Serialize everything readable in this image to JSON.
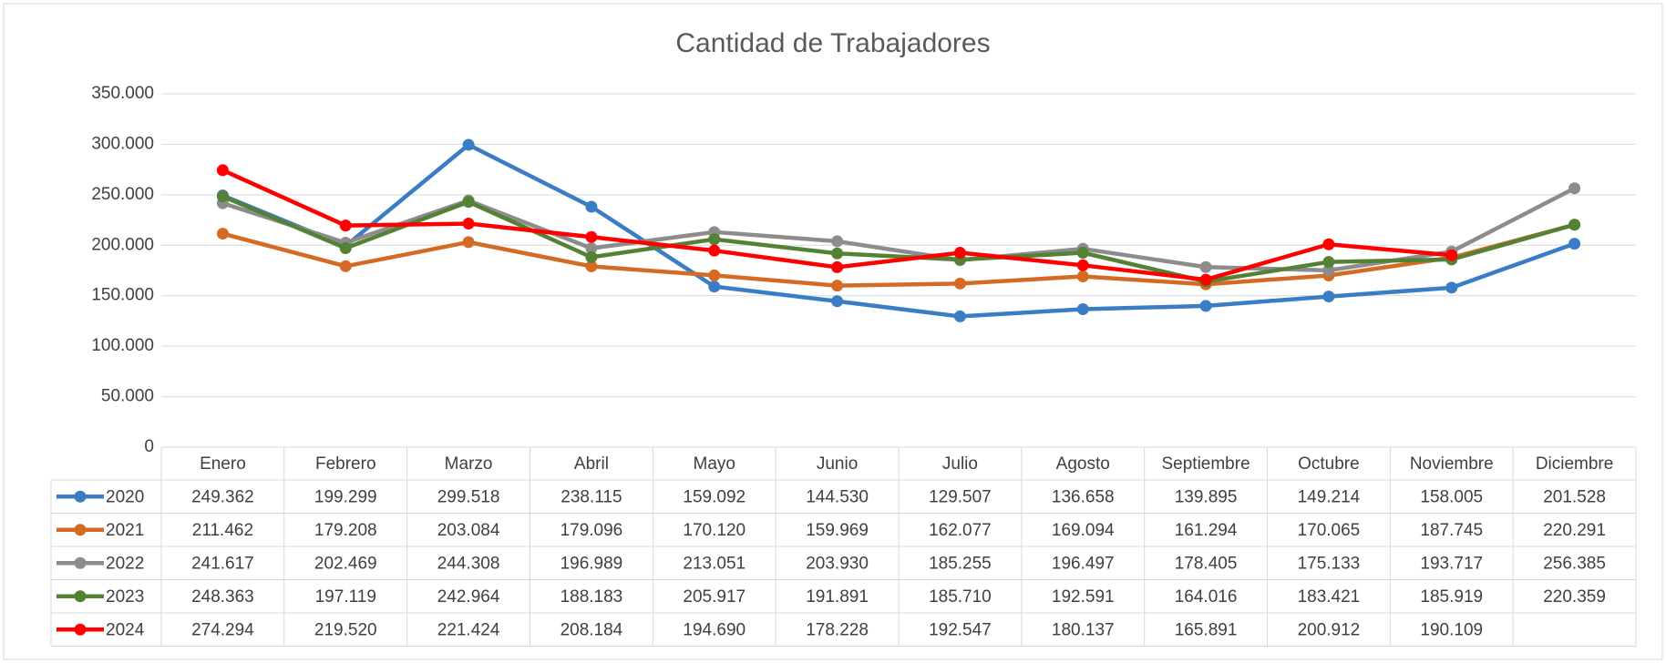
{
  "chart_data": {
    "type": "line",
    "title": "Cantidad de Trabajadores",
    "categories": [
      "Enero",
      "Febrero",
      "Marzo",
      "Abril",
      "Mayo",
      "Junio",
      "Julio",
      "Agosto",
      "Septiembre",
      "Octubre",
      "Noviembre",
      "Diciembre"
    ],
    "series": [
      {
        "name": "2020",
        "color": "#3a7dc4",
        "values": [
          249362,
          199299,
          299518,
          238115,
          159092,
          144530,
          129507,
          136658,
          139895,
          149214,
          158005,
          201528
        ],
        "value_labels": [
          "249.362",
          "199.299",
          "299.518",
          "238.115",
          "159.092",
          "144.530",
          "129.507",
          "136.658",
          "139.895",
          "149.214",
          "158.005",
          "201.528"
        ]
      },
      {
        "name": "2021",
        "color": "#d46a24",
        "values": [
          211462,
          179208,
          203084,
          179096,
          170120,
          159969,
          162077,
          169094,
          161294,
          170065,
          187745,
          220291
        ],
        "value_labels": [
          "211.462",
          "179.208",
          "203.084",
          "179.096",
          "170.120",
          "159.969",
          "162.077",
          "169.094",
          "161.294",
          "170.065",
          "187.745",
          "220.291"
        ]
      },
      {
        "name": "2022",
        "color": "#8c8c8c",
        "values": [
          241617,
          202469,
          244308,
          196989,
          213051,
          203930,
          185255,
          196497,
          178405,
          175133,
          193717,
          256385
        ],
        "value_labels": [
          "241.617",
          "202.469",
          "244.308",
          "196.989",
          "213.051",
          "203.930",
          "185.255",
          "196.497",
          "178.405",
          "175.133",
          "193.717",
          "256.385"
        ]
      },
      {
        "name": "2023",
        "color": "#548235",
        "values": [
          248363,
          197119,
          242964,
          188183,
          205917,
          191891,
          185710,
          192591,
          164016,
          183421,
          185919,
          220359
        ],
        "value_labels": [
          "248.363",
          "197.119",
          "242.964",
          "188.183",
          "205.917",
          "191.891",
          "185.710",
          "192.591",
          "164.016",
          "183.421",
          "185.919",
          "220.359"
        ]
      },
      {
        "name": "2024",
        "color": "#ff0000",
        "values": [
          274294,
          219520,
          221424,
          208184,
          194690,
          178228,
          192547,
          180137,
          165891,
          200912,
          190109,
          null
        ],
        "value_labels": [
          "274.294",
          "219.520",
          "221.424",
          "208.184",
          "194.690",
          "178.228",
          "192.547",
          "180.137",
          "165.891",
          "200.912",
          "190.109",
          null
        ]
      }
    ],
    "ylim": [
      0,
      350000
    ],
    "yticks": [
      0,
      {
        "value": 50000,
        "label": "50.000"
      },
      {
        "value": 100000,
        "label": "100.000"
      },
      {
        "value": 150000,
        "label": "150.000"
      },
      {
        "value": 200000,
        "label": "200.000"
      },
      {
        "value": 250000,
        "label": "250.000"
      },
      {
        "value": 300000,
        "label": "300.000"
      },
      {
        "value": 350000,
        "label": "350.000"
      }
    ],
    "grid": true
  }
}
